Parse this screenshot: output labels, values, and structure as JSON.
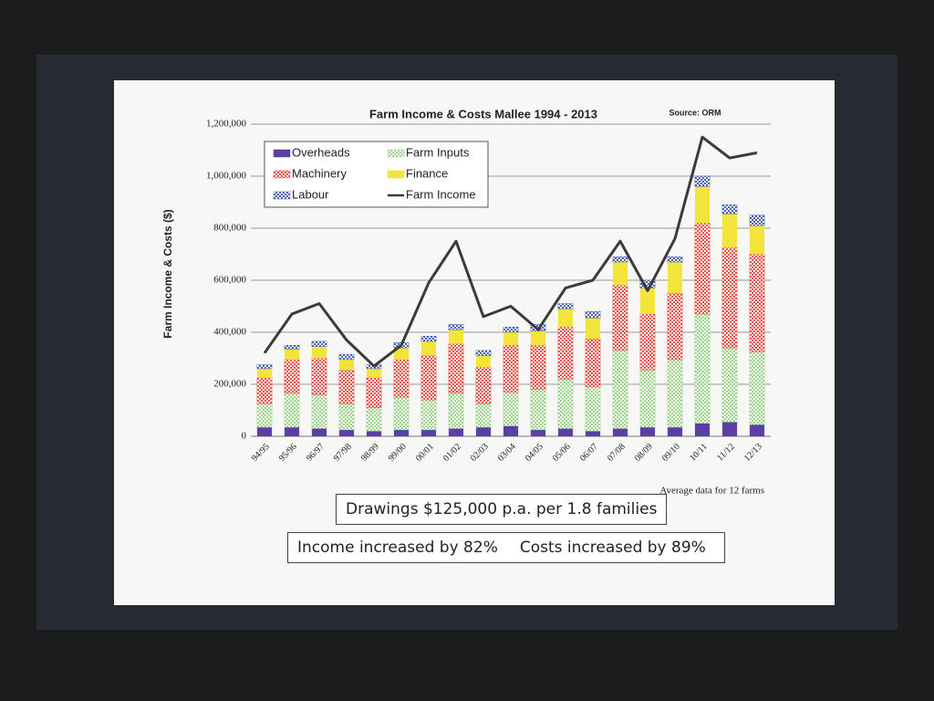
{
  "chart_data": {
    "type": "bar",
    "stacked": true,
    "title": "Farm Income & Costs  Mallee 1994 - 2013",
    "source": "Source: ORM",
    "y_label": "Farm Income & Costs ($)",
    "note": "Average data for 12 farms",
    "text_boxes": [
      [
        "Drawings $125,000 p.a. per 1.8 families"
      ],
      [
        "Income increased by 82%",
        "Costs increased by 89%"
      ]
    ],
    "categories": [
      "94/95",
      "95/96",
      "96/97",
      "97/98",
      "98/99",
      "99/00",
      "00/01",
      "01/02",
      "02/03",
      "03/04",
      "04/05",
      "05/06",
      "06/07",
      "07/08",
      "08/09",
      "09/10",
      "10/11",
      "11/12",
      "12/13"
    ],
    "series": [
      {
        "name": "Overheads",
        "color": "#5b3fa6",
        "pattern": "solid",
        "values": [
          35000,
          35000,
          30000,
          25000,
          20000,
          25000,
          25000,
          30000,
          35000,
          40000,
          25000,
          30000,
          20000,
          30000,
          35000,
          35000,
          50000,
          55000,
          45000
        ]
      },
      {
        "name": "Farm Inputs",
        "color": "#9fd38c",
        "pattern": "check",
        "values": [
          90000,
          130000,
          130000,
          100000,
          90000,
          125000,
          115000,
          135000,
          90000,
          130000,
          155000,
          190000,
          170000,
          300000,
          220000,
          260000,
          420000,
          285000,
          280000
        ]
      },
      {
        "name": "Machinery",
        "color": "#e8534a",
        "pattern": "check",
        "values": [
          100000,
          130000,
          140000,
          130000,
          115000,
          145000,
          170000,
          190000,
          140000,
          180000,
          170000,
          200000,
          185000,
          250000,
          215000,
          255000,
          350000,
          385000,
          375000
        ]
      },
      {
        "name": "Finance",
        "color": "#f2e43a",
        "pattern": "solid",
        "values": [
          35000,
          40000,
          45000,
          40000,
          35000,
          45000,
          55000,
          55000,
          45000,
          50000,
          55000,
          70000,
          80000,
          90000,
          100000,
          120000,
          140000,
          130000,
          110000
        ]
      },
      {
        "name": "Labour",
        "color": "#4a62b3",
        "pattern": "check",
        "values": [
          15000,
          15000,
          20000,
          20000,
          15000,
          20000,
          20000,
          20000,
          20000,
          20000,
          25000,
          20000,
          25000,
          20000,
          30000,
          20000,
          40000,
          35000,
          40000
        ]
      },
      {
        "name": "Farm Income",
        "type": "line",
        "color": "#3b3b3b",
        "values": [
          320000,
          470000,
          510000,
          370000,
          270000,
          350000,
          590000,
          750000,
          460000,
          500000,
          410000,
          570000,
          600000,
          750000,
          560000,
          760000,
          1150000,
          1070000,
          1090000
        ]
      }
    ],
    "ylim": [
      0,
      1200000
    ],
    "yticks": [
      0,
      {
        "value": 200000,
        "label": "200,000"
      },
      {
        "value": 400000,
        "label": "400,000"
      },
      {
        "value": 600000,
        "label": "600,000"
      },
      {
        "value": 800000,
        "label": "800,000"
      },
      {
        "value": 1000000,
        "label": "1,000,000"
      },
      {
        "value": 1200000,
        "label": "1,200,000"
      }
    ],
    "grid": true,
    "legend": "top-left"
  }
}
